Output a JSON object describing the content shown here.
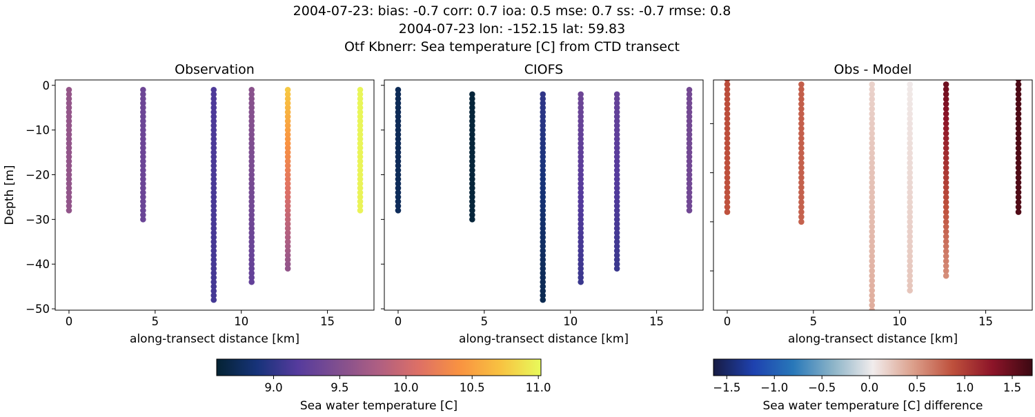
{
  "figure": {
    "title_lines": [
      "2004-07-23: bias: -0.7  corr: 0.7  ioa: 0.5  mse: 0.7  ss: -0.7  rmse: 0.8",
      "2004-07-23 lon: -152.15 lat: 59.83",
      "Otf Kbnerr: Sea temperature [C] from CTD transect"
    ]
  },
  "chart_data": [
    {
      "type": "scatter",
      "title": "Observation",
      "xlabel": "along-transect distance [km]",
      "ylabel": "Depth [m]",
      "xlim": [
        -0.8,
        17.7
      ],
      "ylim": [
        -50.3,
        1.2
      ],
      "xticks": [
        0,
        5,
        10,
        15
      ],
      "yticks": [
        0,
        -10,
        -20,
        -30,
        -40,
        -50
      ],
      "colormap": "thermal",
      "profiles": [
        {
          "distance": 0.0,
          "depth_top": -1,
          "depth_bottom": -28,
          "value_top": 9.62,
          "value_bottom": 9.6
        },
        {
          "distance": 4.3,
          "depth_top": -1,
          "depth_bottom": -30,
          "value_top": 9.35,
          "value_bottom": 9.33
        },
        {
          "distance": 8.4,
          "depth_top": -1,
          "depth_bottom": -48,
          "value_top": 9.15,
          "value_bottom": 9.1
        },
        {
          "distance": 10.6,
          "depth_top": -1,
          "depth_bottom": -44,
          "value_top": 9.55,
          "value_bottom": 9.28
        },
        {
          "distance": 12.7,
          "depth_top": -1,
          "depth_bottom": -41,
          "value_top": 10.75,
          "value_bottom": 9.6
        },
        {
          "distance": 16.9,
          "depth_top": -1,
          "depth_bottom": -28,
          "value_top": 11.0,
          "value_bottom": 10.98
        }
      ]
    },
    {
      "type": "scatter",
      "title": "CIOFS",
      "xlabel": "along-transect distance [km]",
      "xlim": [
        -0.8,
        17.7
      ],
      "ylim": [
        -50.3,
        1.2
      ],
      "xticks": [
        0,
        5,
        10,
        15
      ],
      "yticks": [
        0,
        -10,
        -20,
        -30,
        -40,
        -50
      ],
      "colormap": "thermal",
      "profiles": [
        {
          "distance": 0.0,
          "depth_top": -1,
          "depth_bottom": -28,
          "value_top": 8.72,
          "value_bottom": 8.74
        },
        {
          "distance": 4.3,
          "depth_top": -2,
          "depth_bottom": -30,
          "value_top": 8.6,
          "value_bottom": 8.6
        },
        {
          "distance": 8.4,
          "depth_top": -2,
          "depth_bottom": -48,
          "value_top": 9.0,
          "value_bottom": 8.7
        },
        {
          "distance": 10.6,
          "depth_top": -2,
          "depth_bottom": -44,
          "value_top": 9.35,
          "value_bottom": 9.05
        },
        {
          "distance": 12.7,
          "depth_top": -2,
          "depth_bottom": -41,
          "value_top": 9.3,
          "value_bottom": 9.05
        },
        {
          "distance": 16.9,
          "depth_top": -1,
          "depth_bottom": -28,
          "value_top": 9.4,
          "value_bottom": 9.38
        }
      ]
    },
    {
      "type": "scatter",
      "title": "Obs - Model",
      "xlabel": "along-transect distance [km]",
      "xlim": [
        -0.8,
        17.7
      ],
      "ylim": [
        -48.0,
        -1.1
      ],
      "xticks": [
        0,
        5,
        10,
        15
      ],
      "yticks": [
        -10,
        -20,
        -30,
        -40
      ],
      "colormap": "balance",
      "profiles": [
        {
          "distance": 0.0,
          "depth_top": -1,
          "depth_bottom": -28,
          "value_top": 0.9,
          "value_bottom": 0.86
        },
        {
          "distance": 4.3,
          "depth_top": -2,
          "depth_bottom": -30,
          "value_top": 0.8,
          "value_bottom": 0.78
        },
        {
          "distance": 8.4,
          "depth_top": -2,
          "depth_bottom": -48,
          "value_top": 0.18,
          "value_bottom": 0.38
        },
        {
          "distance": 10.6,
          "depth_top": -2,
          "depth_bottom": -44,
          "value_top": 0.05,
          "value_bottom": 0.25
        },
        {
          "distance": 12.7,
          "depth_top": -2,
          "depth_bottom": -41,
          "value_top": 1.45,
          "value_bottom": 0.55
        },
        {
          "distance": 16.9,
          "depth_top": -1,
          "depth_bottom": -28,
          "value_top": 1.62,
          "value_bottom": 1.6
        }
      ]
    }
  ],
  "colorbars": [
    {
      "label": "Sea water temperature [C]",
      "range": [
        8.57,
        11.02
      ],
      "ticks": [
        "9.0",
        "9.5",
        "10.0",
        "10.5",
        "11.0"
      ],
      "colormap": "thermal"
    },
    {
      "label": "Sea water temperature [C] difference",
      "range": [
        -1.64,
        1.71
      ],
      "ticks": [
        "−1.5",
        "−1.0",
        "−0.5",
        "0.0",
        "0.5",
        "1.0",
        "1.5"
      ],
      "colormap": "balance"
    }
  ],
  "colormaps": {
    "thermal": [
      "#042333",
      "#17337a",
      "#553b9d",
      "#814f8f",
      "#af5f82",
      "#de7065",
      "#f99341",
      "#f8c241",
      "#e8fa5b"
    ],
    "balance": [
      "#181c43",
      "#1e41af",
      "#2878b9",
      "#8cb4c8",
      "#f1ecec",
      "#dca08c",
      "#be503c",
      "#8c1428",
      "#3c0912"
    ]
  }
}
